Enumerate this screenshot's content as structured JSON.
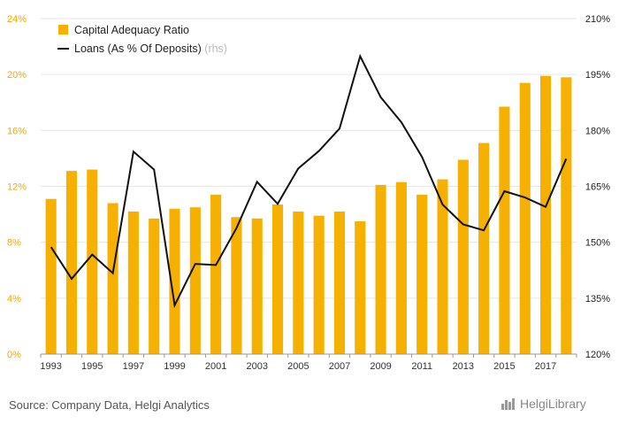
{
  "chart_data": {
    "type": "bar",
    "categories": [
      "1993",
      "1994",
      "1995",
      "1996",
      "1997",
      "1998",
      "1999",
      "2000",
      "2001",
      "2002",
      "2003",
      "2004",
      "2005",
      "2006",
      "2007",
      "2008",
      "2009",
      "2010",
      "2011",
      "2012",
      "2013",
      "2014",
      "2015",
      "2016",
      "2017",
      "2018"
    ],
    "x_tick_labels": [
      "1993",
      "1995",
      "1997",
      "1999",
      "2001",
      "2003",
      "2005",
      "2007",
      "2009",
      "2011",
      "2013",
      "2015",
      "2017"
    ],
    "series": [
      {
        "name": "Capital Adequacy Ratio",
        "type": "bar",
        "axis": "left",
        "color": "#f5b000",
        "values": [
          11.1,
          13.1,
          13.2,
          10.8,
          10.2,
          9.7,
          10.4,
          10.5,
          11.4,
          9.8,
          9.7,
          10.7,
          10.2,
          9.9,
          10.2,
          9.5,
          12.1,
          12.3,
          11.4,
          12.5,
          13.9,
          15.1,
          17.7,
          19.4,
          19.9,
          19.8
        ]
      },
      {
        "name": "Loans (As % Of Deposits)",
        "legend_suffix": "(rhs)",
        "type": "line",
        "axis": "right",
        "color": "#111111",
        "values": [
          148.7,
          140.2,
          146.7,
          141.7,
          174.3,
          169.5,
          133.1,
          144.2,
          143.9,
          153.8,
          166.2,
          160.3,
          169.8,
          174.5,
          180.5,
          199.9,
          188.9,
          182.2,
          172.9,
          160.1,
          154.8,
          153.2,
          163.7,
          162.0,
          159.5,
          172.4
        ]
      }
    ],
    "y_left": {
      "ylim": [
        0,
        24
      ],
      "ticks": [
        0,
        4,
        8,
        12,
        16,
        20,
        24
      ],
      "tick_labels": [
        "0%",
        "4%",
        "8%",
        "12%",
        "16%",
        "20%",
        "24%"
      ],
      "tick_color": "#f5a800"
    },
    "y_right": {
      "ylim": [
        120,
        210
      ],
      "ticks": [
        120,
        135,
        150,
        165,
        180,
        195,
        210
      ],
      "tick_labels": [
        "120%",
        "135%",
        "150%",
        "165%",
        "180%",
        "195%",
        "210%"
      ],
      "tick_color": "#222222"
    },
    "grid": true,
    "legend_position": "top-left"
  },
  "source": "Source: Company Data, Helgi Analytics",
  "brand": {
    "name": "HelgiLibrary",
    "logo_icon": "helgi-library-logo"
  }
}
